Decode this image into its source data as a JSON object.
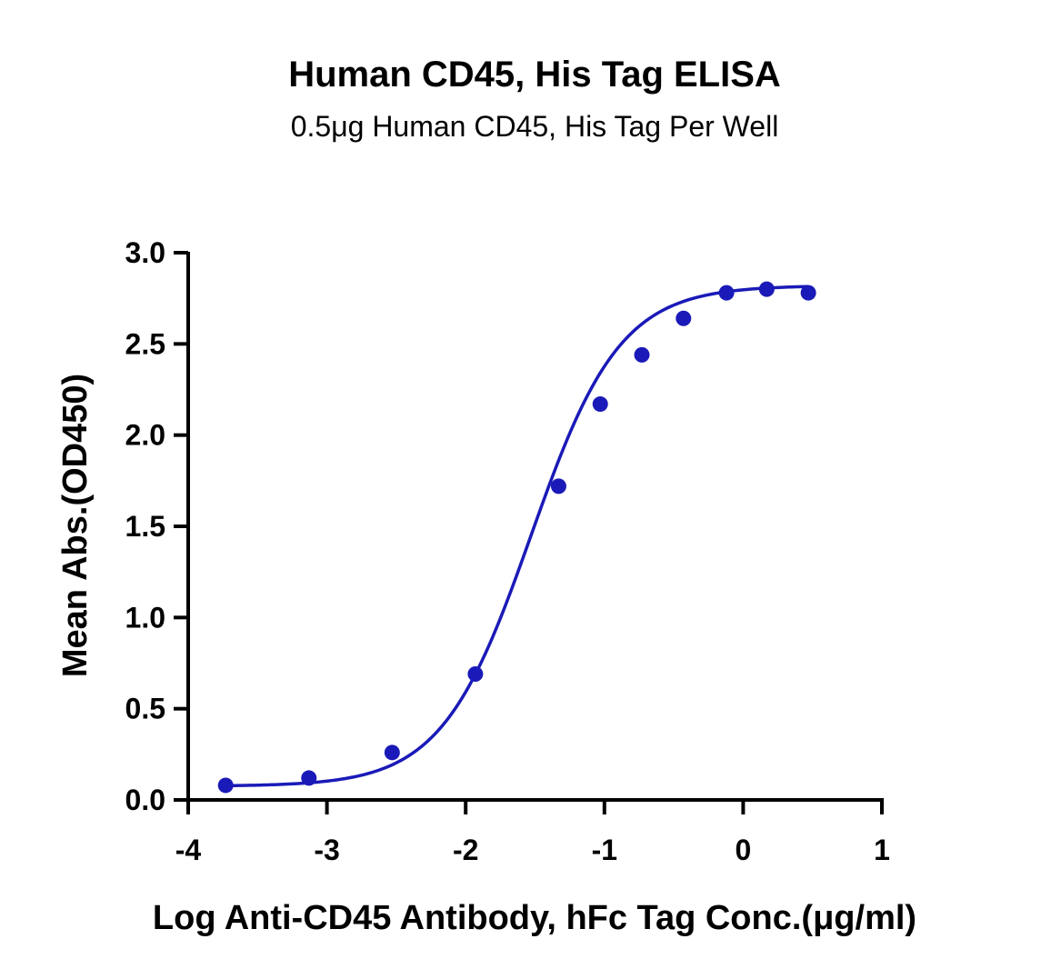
{
  "chart_data": {
    "type": "scatter",
    "title": "Human CD45, His Tag ELISA",
    "subtitle": "0.5μg Human CD45, His Tag Per Well",
    "xlabel": "Log Anti-CD45 Antibody, hFc Tag Conc.(μg/ml)",
    "ylabel": "Mean Abs.(OD450)",
    "xlim": [
      -4,
      1
    ],
    "ylim": [
      0,
      3.0
    ],
    "xticks": [
      -4,
      -3,
      -2,
      -1,
      0,
      1
    ],
    "xtick_labels": [
      "-4",
      "-3",
      "-2",
      "-1",
      "0",
      "1"
    ],
    "yticks": [
      0,
      0.5,
      1.0,
      1.5,
      2.0,
      2.5,
      3.0
    ],
    "ytick_labels": [
      "0.0",
      "0.5",
      "1.0",
      "1.5",
      "2.0",
      "2.5",
      "3.0"
    ],
    "grid": false,
    "color": "#1a1ab8",
    "series": [
      {
        "x": [
          -3.73,
          -3.13,
          -2.53,
          -1.93,
          -1.33,
          -1.03,
          -0.73,
          -0.43,
          -0.12,
          0.17,
          0.47
        ],
        "y": [
          0.08,
          0.12,
          0.26,
          0.69,
          1.72,
          2.17,
          2.44,
          2.64,
          2.78,
          2.8,
          2.78
        ],
        "fit": "four-parameter logistic"
      }
    ],
    "fit_params": {
      "bottom": 0.075,
      "top": 2.82,
      "log_ec50": -1.53,
      "hill": 1.35
    }
  }
}
